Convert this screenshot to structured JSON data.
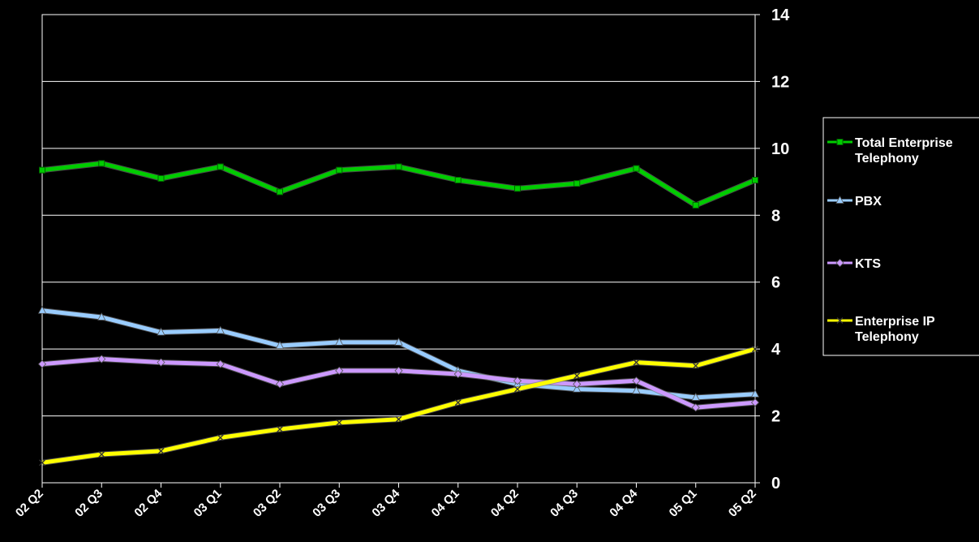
{
  "chart_data": {
    "type": "line",
    "categories": [
      "02 Q2",
      "02 Q3",
      "02 Q4",
      "03 Q1",
      "03 Q2",
      "03 Q3",
      "03 Q4",
      "04 Q1",
      "04 Q2",
      "04 Q3",
      "04 Q4",
      "05 Q1",
      "05 Q2"
    ],
    "ylim": [
      0,
      14
    ],
    "yticks": [
      0,
      2,
      4,
      6,
      8,
      10,
      12,
      14
    ],
    "y_axis_side": "right",
    "grid": true,
    "legend_position": "right",
    "series": [
      {
        "name": "Total Enterprise Telephony",
        "legend_lines": [
          "Total Enterprise",
          "Telephony"
        ],
        "color": "#00cc00",
        "marker": "square",
        "values": [
          9.35,
          9.55,
          9.1,
          9.45,
          8.7,
          9.35,
          9.45,
          9.05,
          8.8,
          8.95,
          9.4,
          8.3,
          9.05
        ]
      },
      {
        "name": "PBX",
        "legend_lines": [
          "PBX"
        ],
        "color": "#99ccff",
        "marker": "triangle",
        "values": [
          5.15,
          4.95,
          4.5,
          4.55,
          4.1,
          4.2,
          4.2,
          3.35,
          2.95,
          2.8,
          2.75,
          2.55,
          2.65
        ]
      },
      {
        "name": "KTS",
        "legend_lines": [
          "KTS"
        ],
        "color": "#cc99ff",
        "marker": "diamond",
        "values": [
          3.55,
          3.7,
          3.6,
          3.55,
          2.95,
          3.35,
          3.35,
          3.25,
          3.05,
          2.95,
          3.05,
          2.25,
          2.4
        ]
      },
      {
        "name": "Enterprise IP Telephony",
        "legend_lines": [
          "Enterprise IP",
          "Telephony"
        ],
        "color": "#ffff00",
        "marker": "x",
        "values": [
          0.6,
          0.85,
          0.95,
          1.35,
          1.6,
          1.8,
          1.9,
          2.4,
          2.8,
          3.2,
          3.6,
          3.5,
          4.0
        ]
      }
    ]
  }
}
